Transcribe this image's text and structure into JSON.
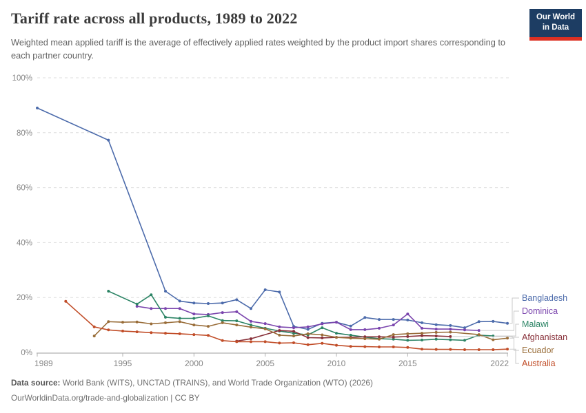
{
  "header": {
    "title": "Tariff rate across all products, 1989 to 2022",
    "subtitle": "Weighted mean applied tariff is the average of effectively applied rates weighted by the product import shares corresponding to each partner country.",
    "logo_line1": "Our World",
    "logo_line2": "in Data",
    "logo_bg_color": "#1d3d63",
    "logo_stripe_color": "#dc3023"
  },
  "footer": {
    "source_label": "Data source:",
    "source_text": " World Bank (WITS), UNCTAD (TRAINS), and World Trade Organization (WTO) (2026)",
    "link_text": "OurWorldinData.org/trade-and-globalization | CC BY"
  },
  "chart_data": {
    "type": "line",
    "title": "Tariff rate across all products, 1989 to 2022",
    "xlabel": "",
    "ylabel": "",
    "unit": "%",
    "xlim": [
      1989,
      2022
    ],
    "ylim": [
      0,
      100
    ],
    "x_ticks": [
      1989,
      1995,
      2000,
      2005,
      2010,
      2015,
      2022
    ],
    "y_ticks": [
      0,
      20,
      40,
      60,
      80,
      100
    ],
    "grid": "horizontal-dashed",
    "legend_position": "right-of-plot",
    "series": [
      {
        "name": "Bangladesh",
        "color": "#4C6BAB",
        "points": [
          [
            1989,
            89.0
          ],
          [
            1994,
            77.3
          ],
          [
            1998,
            22.3
          ],
          [
            1999,
            18.7
          ],
          [
            2000,
            18.0
          ],
          [
            2001,
            17.8
          ],
          [
            2002,
            18.0
          ],
          [
            2003,
            19.2
          ],
          [
            2004,
            16.0
          ],
          [
            2005,
            22.8
          ],
          [
            2006,
            22.0
          ],
          [
            2007,
            9.5
          ],
          [
            2008,
            8.4
          ],
          [
            2009,
            10.6
          ],
          [
            2010,
            11.0
          ],
          [
            2011,
            9.6
          ],
          [
            2012,
            12.7
          ],
          [
            2013,
            12.0
          ],
          [
            2014,
            12.0
          ],
          [
            2015,
            11.8
          ],
          [
            2016,
            10.8
          ],
          [
            2017,
            10.1
          ],
          [
            2018,
            9.8
          ],
          [
            2019,
            9.0
          ],
          [
            2020,
            11.2
          ],
          [
            2021,
            11.3
          ],
          [
            2022,
            10.6
          ]
        ]
      },
      {
        "name": "Dominica",
        "color": "#7A44AD",
        "points": [
          [
            1996,
            16.8
          ],
          [
            1997,
            16.0
          ],
          [
            1998,
            16.0
          ],
          [
            1999,
            16.0
          ],
          [
            2000,
            14.0
          ],
          [
            2001,
            13.8
          ],
          [
            2002,
            14.5
          ],
          [
            2003,
            14.8
          ],
          [
            2004,
            11.3
          ],
          [
            2005,
            10.5
          ],
          [
            2006,
            9.3
          ],
          [
            2007,
            9.0
          ],
          [
            2008,
            9.3
          ],
          [
            2009,
            10.4
          ],
          [
            2010,
            11.0
          ],
          [
            2011,
            8.3
          ],
          [
            2012,
            8.3
          ],
          [
            2013,
            8.8
          ],
          [
            2014,
            10.0
          ],
          [
            2015,
            14.0
          ],
          [
            2016,
            8.8
          ],
          [
            2017,
            8.5
          ],
          [
            2018,
            8.5
          ],
          [
            2019,
            8.2
          ],
          [
            2020,
            8.0
          ]
        ]
      },
      {
        "name": "Malawi",
        "color": "#2C8465",
        "points": [
          [
            1994,
            22.3
          ],
          [
            1996,
            17.6
          ],
          [
            1997,
            21.0
          ],
          [
            1998,
            12.8
          ],
          [
            1999,
            12.4
          ],
          [
            2000,
            12.4
          ],
          [
            2001,
            13.3
          ],
          [
            2002,
            11.6
          ],
          [
            2003,
            11.5
          ],
          [
            2004,
            10.0
          ],
          [
            2005,
            8.8
          ],
          [
            2006,
            7.8
          ],
          [
            2007,
            7.0
          ],
          [
            2008,
            6.4
          ],
          [
            2009,
            9.0
          ],
          [
            2010,
            7.0
          ],
          [
            2011,
            6.3
          ],
          [
            2012,
            5.6
          ],
          [
            2013,
            5.0
          ],
          [
            2014,
            4.8
          ],
          [
            2015,
            4.4
          ],
          [
            2016,
            4.5
          ],
          [
            2017,
            4.8
          ],
          [
            2018,
            4.6
          ],
          [
            2019,
            4.4
          ],
          [
            2020,
            6.3
          ],
          [
            2021,
            6.0
          ]
        ]
      },
      {
        "name": "Afghanistan",
        "color": "#883039",
        "points": [
          [
            2003,
            4.1
          ],
          [
            2004,
            5.0
          ],
          [
            2006,
            8.0
          ],
          [
            2007,
            7.7
          ],
          [
            2008,
            5.4
          ],
          [
            2009,
            5.3
          ],
          [
            2010,
            5.5
          ],
          [
            2011,
            5.5
          ],
          [
            2012,
            5.7
          ],
          [
            2013,
            5.7
          ],
          [
            2014,
            5.6
          ],
          [
            2015,
            5.8
          ],
          [
            2016,
            6.1
          ],
          [
            2017,
            6.0
          ],
          [
            2018,
            5.8
          ]
        ]
      },
      {
        "name": "Ecuador",
        "color": "#996D39",
        "points": [
          [
            1993,
            6.0
          ],
          [
            1994,
            11.2
          ],
          [
            1995,
            11.0
          ],
          [
            1996,
            11.1
          ],
          [
            1997,
            10.4
          ],
          [
            1998,
            10.8
          ],
          [
            1999,
            11.2
          ],
          [
            2000,
            10.0
          ],
          [
            2001,
            9.5
          ],
          [
            2002,
            10.8
          ],
          [
            2003,
            10.0
          ],
          [
            2004,
            9.2
          ],
          [
            2005,
            8.6
          ],
          [
            2006,
            6.3
          ],
          [
            2007,
            6.0
          ],
          [
            2008,
            6.8
          ],
          [
            2009,
            6.4
          ],
          [
            2010,
            5.5
          ],
          [
            2011,
            5.2
          ],
          [
            2012,
            5.0
          ],
          [
            2013,
            4.8
          ],
          [
            2014,
            6.5
          ],
          [
            2015,
            6.8
          ],
          [
            2016,
            7.0
          ],
          [
            2017,
            7.3
          ],
          [
            2018,
            7.4
          ],
          [
            2020,
            6.5
          ],
          [
            2021,
            4.6
          ],
          [
            2022,
            5.2
          ]
        ]
      },
      {
        "name": "Australia",
        "color": "#C14D28",
        "points": [
          [
            1991,
            18.6
          ],
          [
            1993,
            9.3
          ],
          [
            1994,
            8.2
          ],
          [
            1995,
            7.8
          ],
          [
            1996,
            7.5
          ],
          [
            1997,
            7.2
          ],
          [
            1998,
            7.0
          ],
          [
            1999,
            6.8
          ],
          [
            2000,
            6.5
          ],
          [
            2001,
            6.2
          ],
          [
            2002,
            4.3
          ],
          [
            2003,
            3.9
          ],
          [
            2004,
            3.9
          ],
          [
            2005,
            3.9
          ],
          [
            2006,
            3.4
          ],
          [
            2007,
            3.5
          ],
          [
            2008,
            2.8
          ],
          [
            2009,
            3.3
          ],
          [
            2010,
            2.6
          ],
          [
            2011,
            2.2
          ],
          [
            2012,
            2.1
          ],
          [
            2013,
            2.0
          ],
          [
            2014,
            2.0
          ],
          [
            2015,
            1.8
          ],
          [
            2016,
            1.2
          ],
          [
            2017,
            1.1
          ],
          [
            2018,
            1.1
          ],
          [
            2019,
            1.0
          ],
          [
            2020,
            1.0
          ],
          [
            2021,
            1.0
          ],
          [
            2022,
            1.2
          ]
        ]
      }
    ],
    "style": {
      "grid_color": "#dedede",
      "axis_color": "#b0b0b0",
      "tick_label_color": "#858585",
      "connector_color": "#c9c9c9"
    }
  }
}
